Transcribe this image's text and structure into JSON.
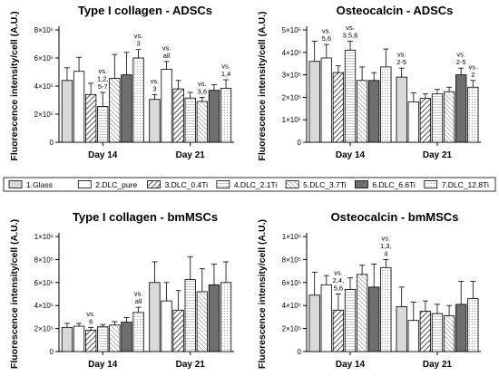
{
  "figure": {
    "legend": {
      "entries": [
        {
          "label": "1.Glass",
          "pattern": "grey"
        },
        {
          "label": "2.DLC_pure",
          "pattern": "white"
        },
        {
          "label": "3.DLC_0.4Ti",
          "pattern": "diag"
        },
        {
          "label": "4.DLC_2.1Ti",
          "pattern": "hlines"
        },
        {
          "label": "5.DLC_3.7Ti",
          "pattern": "diagrev"
        },
        {
          "label": "6.DLC_6.6Ti",
          "pattern": "dark"
        },
        {
          "label": "7.DLC_12.8Ti",
          "pattern": "dots"
        }
      ]
    }
  },
  "chart_data": [
    {
      "type": "bar",
      "title": "Type I collagen - ADSCs",
      "ylabel": "Fluorescence intensity/cell (A.U.)",
      "ylim": [
        0,
        800000
      ],
      "yticks": [
        {
          "value": 0,
          "label": "0"
        },
        {
          "value": 200000,
          "label": "2×10⁵"
        },
        {
          "value": 400000,
          "label": "4×10⁵"
        },
        {
          "value": 600000,
          "label": "6×10⁵"
        },
        {
          "value": 800000,
          "label": "8×10⁵"
        }
      ],
      "categories": [
        "Day 14",
        "Day 21"
      ],
      "series": [
        {
          "name": "1.Glass",
          "values": [
            440000,
            305000
          ],
          "errors": [
            90000,
            35000
          ]
        },
        {
          "name": "2.DLC_pure",
          "values": [
            505000,
            520000
          ],
          "errors": [
            100000,
            55000
          ]
        },
        {
          "name": "3.DLC_0.4Ti",
          "values": [
            340000,
            380000
          ],
          "errors": [
            80000,
            60000
          ]
        },
        {
          "name": "4.DLC_2.1Ti",
          "values": [
            255000,
            315000
          ],
          "errors": [
            100000,
            40000
          ]
        },
        {
          "name": "5.DLC_3.7Ti",
          "values": [
            455000,
            290000
          ],
          "errors": [
            170000,
            30000
          ]
        },
        {
          "name": "6.DLC_6.6Ti",
          "values": [
            480000,
            370000
          ],
          "errors": [
            160000,
            40000
          ]
        },
        {
          "name": "7.DLC_12.8Ti",
          "values": [
            600000,
            385000
          ],
          "errors": [
            60000,
            60000
          ]
        }
      ],
      "annotations": [
        {
          "category": "Day 14",
          "series": "4.DLC_2.1Ti",
          "lines": [
            "vs.",
            "1,2,",
            "5-7"
          ]
        },
        {
          "category": "Day 14",
          "series": "7.DLC_12.8Ti",
          "lines": [
            "vs.",
            "3"
          ]
        },
        {
          "category": "Day 21",
          "series": "1.Glass",
          "lines": [
            "vs.",
            "3"
          ]
        },
        {
          "category": "Day 21",
          "series": "2.DLC_pure",
          "lines": [
            "vs.",
            "all"
          ]
        },
        {
          "category": "Day 21",
          "series": "5.DLC_3.7Ti",
          "lines": [
            "vs.",
            "3,6"
          ]
        },
        {
          "category": "Day 21",
          "series": "7.DLC_12.8Ti",
          "lines": [
            "vs.",
            "1,4"
          ]
        }
      ]
    },
    {
      "type": "bar",
      "title": "Osteocalcin - ADSCs",
      "ylabel": "Fluorescence intensity/cell (A.U.)",
      "ylim": [
        0,
        500000
      ],
      "yticks": [
        {
          "value": 0,
          "label": "0"
        },
        {
          "value": 100000,
          "label": "1×10⁵"
        },
        {
          "value": 200000,
          "label": "2×10⁵"
        },
        {
          "value": 300000,
          "label": "3×10⁵"
        },
        {
          "value": 400000,
          "label": "4×10⁵"
        },
        {
          "value": 500000,
          "label": "5×10⁵"
        }
      ],
      "categories": [
        "Day 14",
        "Day 21"
      ],
      "series": [
        {
          "name": "1.Glass",
          "values": [
            360000,
            290000
          ],
          "errors": [
            90000,
            40000
          ]
        },
        {
          "name": "2.DLC_pure",
          "values": [
            375000,
            180000
          ],
          "errors": [
            60000,
            40000
          ]
        },
        {
          "name": "3.DLC_0.4Ti",
          "values": [
            310000,
            195000
          ],
          "errors": [
            30000,
            20000
          ]
        },
        {
          "name": "4.DLC_2.1Ti",
          "values": [
            410000,
            215000
          ],
          "errors": [
            40000,
            20000
          ]
        },
        {
          "name": "5.DLC_3.7Ti",
          "values": [
            275000,
            225000
          ],
          "errors": [
            60000,
            20000
          ]
        },
        {
          "name": "6.DLC_6.6Ti",
          "values": [
            275000,
            300000
          ],
          "errors": [
            35000,
            30000
          ]
        },
        {
          "name": "7.DLC_12.8Ti",
          "values": [
            335000,
            245000
          ],
          "errors": [
            80000,
            30000
          ]
        }
      ],
      "annotations": [
        {
          "category": "Day 14",
          "series": "2.DLC_pure",
          "lines": [
            "vs.",
            "5,6"
          ]
        },
        {
          "category": "Day 14",
          "series": "4.DLC_2.1Ti",
          "lines": [
            "vs.",
            "3,5,6"
          ]
        },
        {
          "category": "Day 21",
          "series": "1.Glass",
          "lines": [
            "vs.",
            "2-5"
          ]
        },
        {
          "category": "Day 21",
          "series": "6.DLC_6.6Ti",
          "lines": [
            "vs.",
            "2-5"
          ]
        },
        {
          "category": "Day 21",
          "series": "7.DLC_12.8Ti",
          "lines": [
            "vs.",
            "2"
          ]
        }
      ]
    },
    {
      "type": "bar",
      "title": "Type I collagen - bmMSCs",
      "ylabel": "Fluorescence intensity/cell (A.U.)",
      "ylim": [
        0,
        1000000
      ],
      "yticks": [
        {
          "value": 0,
          "label": "0"
        },
        {
          "value": 200000,
          "label": "2×10⁵"
        },
        {
          "value": 400000,
          "label": "4×10⁵"
        },
        {
          "value": 600000,
          "label": "6×10⁵"
        },
        {
          "value": 800000,
          "label": "8×10⁵"
        },
        {
          "value": 1000000,
          "label": "1×10⁶"
        }
      ],
      "categories": [
        "Day 14",
        "Day 21"
      ],
      "series": [
        {
          "name": "1.Glass",
          "values": [
            210000,
            600000
          ],
          "errors": [
            35000,
            180000
          ]
        },
        {
          "name": "2.DLC_pure",
          "values": [
            220000,
            440000
          ],
          "errors": [
            25000,
            160000
          ]
        },
        {
          "name": "3.DLC_0.4Ti",
          "values": [
            185000,
            360000
          ],
          "errors": [
            25000,
            170000
          ]
        },
        {
          "name": "4.DLC_2.1Ti",
          "values": [
            215000,
            625000
          ],
          "errors": [
            20000,
            200000
          ]
        },
        {
          "name": "5.DLC_3.7Ti",
          "values": [
            230000,
            520000
          ],
          "errors": [
            30000,
            200000
          ]
        },
        {
          "name": "6.DLC_6.6Ti",
          "values": [
            255000,
            580000
          ],
          "errors": [
            40000,
            180000
          ]
        },
        {
          "name": "7.DLC_12.8Ti",
          "values": [
            340000,
            600000
          ],
          "errors": [
            45000,
            180000
          ]
        }
      ],
      "annotations": [
        {
          "category": "Day 14",
          "series": "3.DLC_0.4Ti",
          "lines": [
            "vs.",
            "6"
          ]
        },
        {
          "category": "Day 14",
          "series": "7.DLC_12.8Ti",
          "lines": [
            "vs.",
            "all"
          ]
        }
      ]
    },
    {
      "type": "bar",
      "title": "Osteocalcin - bmMSCs",
      "ylabel": "Fluorescence intensity/cell (A.U.)",
      "ylim": [
        0,
        1000000
      ],
      "yticks": [
        {
          "value": 0,
          "label": "0"
        },
        {
          "value": 200000,
          "label": "2×10⁵"
        },
        {
          "value": 400000,
          "label": "4×10⁵"
        },
        {
          "value": 600000,
          "label": "6×10⁵"
        },
        {
          "value": 800000,
          "label": "8×10⁵"
        },
        {
          "value": 1000000,
          "label": "1×10⁶"
        }
      ],
      "categories": [
        "Day 14",
        "Day 21"
      ],
      "series": [
        {
          "name": "1.Glass",
          "values": [
            490000,
            390000
          ],
          "errors": [
            200000,
            170000
          ]
        },
        {
          "name": "2.DLC_pure",
          "values": [
            580000,
            270000
          ],
          "errors": [
            80000,
            160000
          ]
        },
        {
          "name": "3.DLC_0.4Ti",
          "values": [
            360000,
            350000
          ],
          "errors": [
            140000,
            90000
          ]
        },
        {
          "name": "4.DLC_2.1Ti",
          "values": [
            540000,
            330000
          ],
          "errors": [
            100000,
            80000
          ]
        },
        {
          "name": "5.DLC_3.7Ti",
          "values": [
            670000,
            310000
          ],
          "errors": [
            80000,
            90000
          ]
        },
        {
          "name": "6.DLC_6.6Ti",
          "values": [
            560000,
            410000
          ],
          "errors": [
            200000,
            200000
          ]
        },
        {
          "name": "7.DLC_12.8Ti",
          "values": [
            730000,
            460000
          ],
          "errors": [
            70000,
            150000
          ]
        }
      ],
      "annotations": [
        {
          "category": "Day 14",
          "series": "3.DLC_0.4Ti",
          "lines": [
            "vs.",
            "2,4,",
            "5,6"
          ]
        },
        {
          "category": "Day 14",
          "series": "7.DLC_12.8Ti",
          "lines": [
            "vs.",
            "1,3,",
            "4"
          ]
        }
      ]
    }
  ]
}
